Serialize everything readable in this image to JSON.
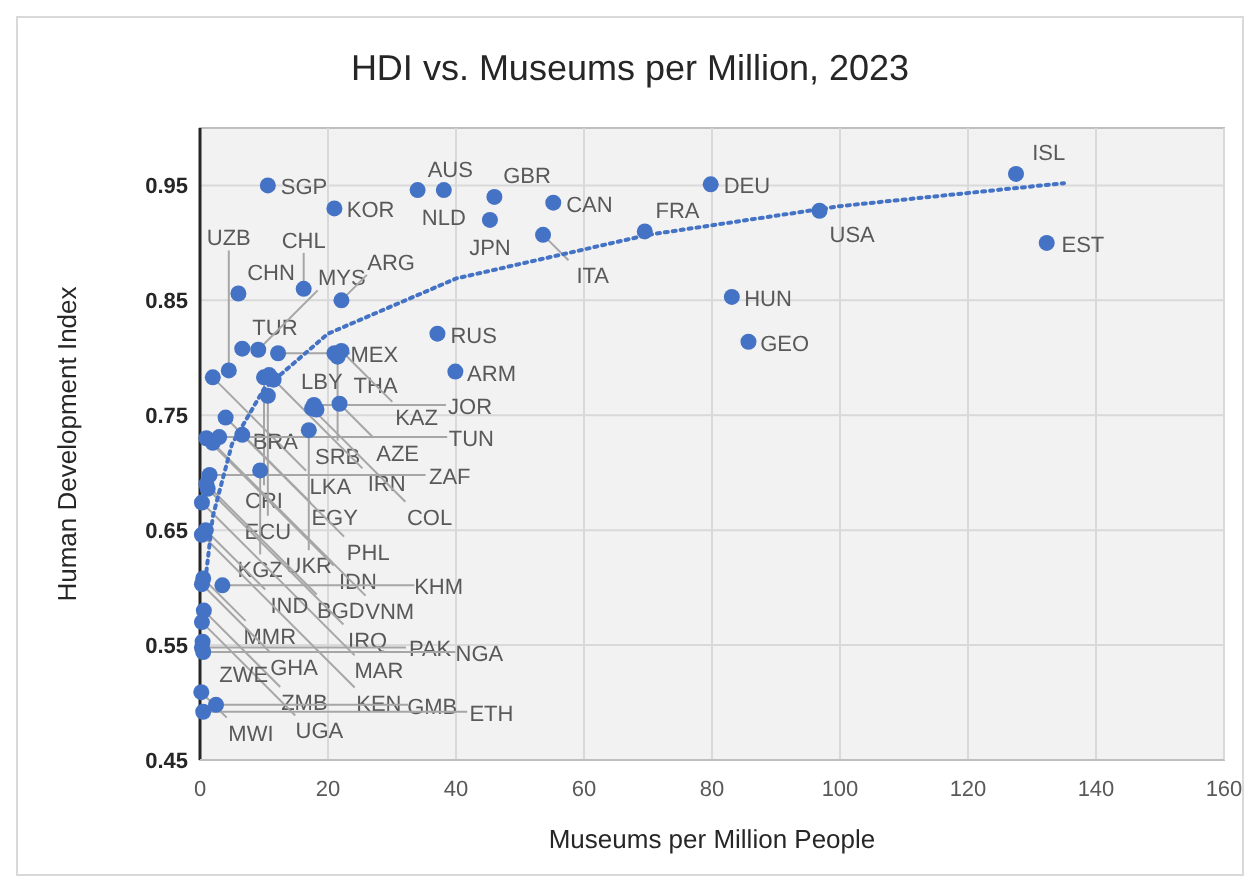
{
  "chart_data": {
    "type": "scatter",
    "title": "HDI vs. Museums per Million, 2023",
    "xlabel": "Museums per Million People",
    "ylabel": "Human Development Index",
    "xlim": [
      0,
      160
    ],
    "xticks": [
      0,
      20,
      40,
      60,
      80,
      100,
      120,
      140,
      160
    ],
    "ylim": [
      0.45,
      1.0
    ],
    "yticks": [
      0.45,
      0.55,
      0.65,
      0.75,
      0.85,
      0.95
    ],
    "grid": true,
    "marker": "circle",
    "series": [
      {
        "color": "#4472c4",
        "x": [
          10.6,
          21,
          34,
          38.1,
          46,
          45.3,
          55.2,
          53.6,
          79.8,
          69.5,
          96.8,
          127.5,
          132.3,
          83.1,
          85.7,
          37.1,
          39.9,
          6.0,
          6.6,
          9.1,
          12.2,
          16.2,
          22.1,
          21.0,
          22.1,
          21.5,
          10.0,
          10.8,
          11.5,
          4.5,
          2.0,
          10.6,
          4.0,
          17.8,
          21.8,
          18.2,
          17.5,
          6.6,
          17.0,
          1.0,
          3.0,
          2.0,
          9.4,
          1.5,
          1.0,
          1.2,
          0.3,
          0.9,
          0.3,
          0.5,
          0.3,
          3.5,
          0.6,
          0.3,
          0.4,
          0.3,
          0.5,
          0.2,
          2.5,
          0.5
        ],
        "values": [
          0.95,
          0.93,
          0.946,
          0.946,
          0.94,
          0.92,
          0.935,
          0.907,
          0.951,
          0.91,
          0.928,
          0.96,
          0.9,
          0.853,
          0.814,
          0.821,
          0.788,
          0.856,
          0.808,
          0.807,
          0.804,
          0.86,
          0.85,
          0.804,
          0.806,
          0.801,
          0.783,
          0.785,
          0.781,
          0.789,
          0.783,
          0.767,
          0.748,
          0.759,
          0.76,
          0.755,
          0.756,
          0.733,
          0.737,
          0.73,
          0.731,
          0.726,
          0.702,
          0.698,
          0.69,
          0.686,
          0.674,
          0.65,
          0.646,
          0.608,
          0.603,
          0.602,
          0.58,
          0.57,
          0.553,
          0.548,
          0.544,
          0.509,
          0.498,
          0.492
        ],
        "value_labels": [
          "SGP",
          "KOR",
          "AUS",
          "NLD",
          "GBR",
          "JPN",
          "CAN",
          "ITA",
          "DEU",
          "FRA",
          "USA",
          "ISL",
          "EST",
          "HUN",
          "GEO",
          "RUS",
          "ARM",
          "CHN",
          "TUR",
          "MYS",
          "MEX",
          "CHL",
          "ARG",
          "THA",
          "KAZ",
          "SRB",
          "CRI",
          "IRN",
          "LBY",
          "UZB",
          "LKA",
          "ECU",
          "EGY",
          "JOR",
          "AZE",
          "BRA",
          "COL",
          "PHL",
          "UKR",
          "IDN",
          "TUN",
          "VNM",
          "KGZ",
          "ZAF",
          "BGD",
          "IRQ",
          "MAR",
          "IND",
          "KEN",
          "MMR",
          "GHA",
          "KHM",
          "ZMB",
          "UGA",
          "ZWE",
          "PAK",
          "NGA",
          "MWI",
          "GMB",
          "ETH"
        ]
      },
      {
        "type": "line",
        "marker": "none",
        "line_style": "dotted",
        "color": "#4472c4",
        "x": [
          1,
          2,
          5,
          10,
          20,
          40,
          70,
          100,
          135
        ],
        "values": [
          0.614,
          0.662,
          0.725,
          0.773,
          0.821,
          0.869,
          0.907,
          0.932,
          0.952
        ]
      }
    ]
  }
}
